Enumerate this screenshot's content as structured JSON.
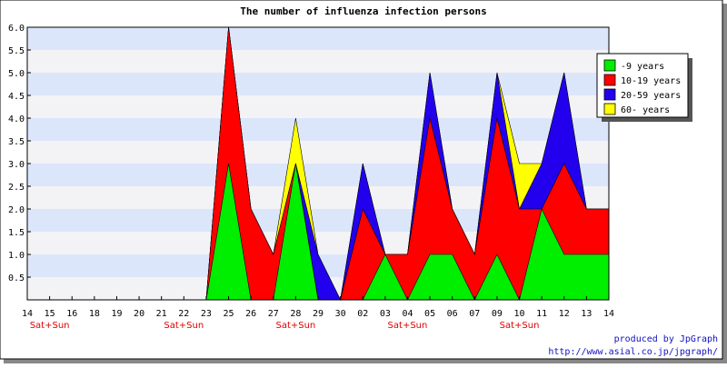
{
  "chart_data": {
    "type": "area",
    "stacked": true,
    "title": "The number of influenza infection persons",
    "x_labels": [
      "14",
      "15",
      "16",
      "18",
      "19",
      "20",
      "21",
      "22",
      "23",
      "25",
      "26",
      "27",
      "28",
      "29",
      "30",
      "02",
      "03",
      "04",
      "05",
      "06",
      "07",
      "09",
      "10",
      "11",
      "12",
      "13",
      "14"
    ],
    "weekend_labels": [
      {
        "index": 1,
        "text": "Sat+Sun"
      },
      {
        "index": 7,
        "text": "Sat+Sun"
      },
      {
        "index": 12,
        "text": "Sat+Sun"
      },
      {
        "index": 17,
        "text": "Sat+Sun"
      },
      {
        "index": 22,
        "text": "Sat+Sun"
      }
    ],
    "ylim": [
      0,
      6
    ],
    "y_ticks": [
      "0.5",
      "1.0",
      "1.5",
      "2.0",
      "2.5",
      "3.0",
      "3.5",
      "4.0",
      "4.5",
      "5.0",
      "5.5",
      "6.0"
    ],
    "grid": "horizontal bands",
    "legend_position": "top-right",
    "series": [
      {
        "name": "-9 years",
        "color": "#00ee00",
        "values": [
          0,
          0,
          0,
          0,
          0,
          0,
          0,
          0,
          0,
          3,
          0,
          0,
          3,
          0,
          0,
          0,
          1,
          0,
          1,
          1,
          0,
          1,
          0,
          2,
          1,
          1,
          1
        ]
      },
      {
        "name": "10-19 years",
        "color": "#ff0000",
        "values": [
          0,
          0,
          0,
          0,
          0,
          0,
          0,
          0,
          0,
          3,
          2,
          1,
          0,
          0,
          0,
          2,
          0,
          1,
          3,
          1,
          1,
          3,
          2,
          0,
          2,
          1,
          1
        ]
      },
      {
        "name": "20-59 years",
        "color": "#2200ee",
        "values": [
          0,
          0,
          0,
          0,
          0,
          0,
          0,
          0,
          0,
          0,
          0,
          0,
          0,
          1,
          0,
          1,
          0,
          0,
          1,
          0,
          0,
          1,
          0,
          1,
          2,
          0,
          0
        ]
      },
      {
        "name": "60- years",
        "color": "#ffff00",
        "values": [
          0,
          0,
          0,
          0,
          0,
          0,
          0,
          0,
          0,
          0,
          0,
          0,
          1,
          0,
          0,
          0,
          0,
          0,
          0,
          0,
          0,
          0,
          1,
          0,
          0,
          0,
          0
        ]
      }
    ]
  },
  "footer": {
    "line1": "produced by JpGraph",
    "line2": "http://www.asial.co.jp/jpgraph/"
  }
}
